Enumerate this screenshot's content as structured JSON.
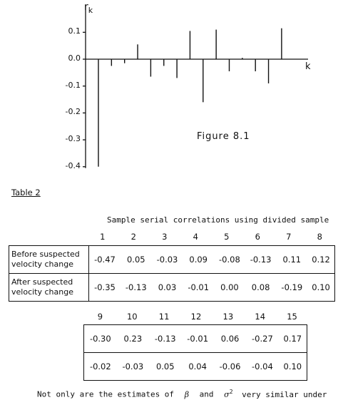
{
  "chart_data": {
    "type": "bar",
    "title": "Figure 8.1",
    "ylabel": "r",
    "ylabel_sub": "k",
    "xlabel": "k",
    "ylim": [
      -0.4,
      0.1
    ],
    "yticks": [
      "0.1",
      "0.0",
      "-0.1",
      "-0.2",
      "-0.3",
      "-0.4"
    ],
    "ytick_values": [
      0.1,
      0.0,
      -0.1,
      -0.2,
      -0.3,
      -0.4
    ],
    "x": [
      1,
      2,
      3,
      4,
      5,
      6,
      7,
      8,
      9,
      10,
      11,
      12,
      13,
      14,
      15
    ],
    "values": [
      -0.4,
      -0.025,
      -0.015,
      0.055,
      -0.065,
      -0.025,
      -0.07,
      0.105,
      -0.16,
      0.11,
      -0.045,
      0.005,
      -0.045,
      -0.09,
      0.115
    ]
  },
  "table": {
    "caption": "Table 2",
    "subtitle": "Sample serial correlations using divided sample",
    "lags_a": [
      "1",
      "2",
      "3",
      "4",
      "5",
      "6",
      "7",
      "8"
    ],
    "rows_a": [
      {
        "label1": "Before suspected",
        "label2": "velocity change",
        "values": [
          "-0.47",
          "0.05",
          "-0.03",
          "0.09",
          "-0.08",
          "-0.13",
          "0.11",
          "0.12"
        ]
      },
      {
        "label1": "After suspected",
        "label2": "velocity change",
        "values": [
          "-0.35",
          "-0.13",
          "0.03",
          "-0.01",
          "0.00",
          "0.08",
          "-0.19",
          "0.10"
        ]
      }
    ],
    "lags_b": [
      "9",
      "10",
      "11",
      "12",
      "13",
      "14",
      "15"
    ],
    "rows_b": [
      {
        "values": [
          "-0.30",
          "0.23",
          "-0.13",
          "-0.01",
          "0.06",
          "-0.27",
          "0.17"
        ]
      },
      {
        "values": [
          "-0.02",
          "-0.03",
          "0.05",
          "0.04",
          "-0.06",
          "-0.04",
          "0.10"
        ]
      }
    ]
  },
  "footer": {
    "part1": "Not only are the estimates of",
    "beta": "β",
    "and": "and",
    "sigma": "σ",
    "sup": "2",
    "part2": "very similar under"
  }
}
